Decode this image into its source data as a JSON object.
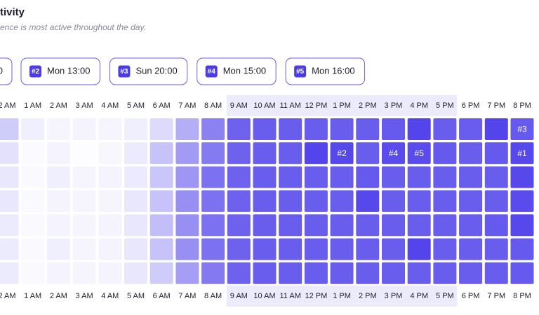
{
  "chart_data": {
    "type": "heatmap",
    "title": "tivity",
    "subtitle": "ence is most active throughout the day.",
    "pills": [
      {
        "text": "0"
      },
      {
        "badge": "#2",
        "text": "Mon 13:00"
      },
      {
        "badge": "#3",
        "text": "Sun 20:00"
      },
      {
        "badge": "#4",
        "text": "Mon 15:00"
      },
      {
        "badge": "#5",
        "text": "Mon 16:00"
      }
    ],
    "categories": [
      "2 AM",
      "1 AM",
      "2 AM",
      "3 AM",
      "4 AM",
      "5 AM",
      "6 AM",
      "7 AM",
      "8 AM",
      "9 AM",
      "10 AM",
      "11 AM",
      "12 PM",
      "1 PM",
      "2 PM",
      "3 PM",
      "4 PM",
      "5 PM",
      "6 PM",
      "7 PM",
      "8 PM"
    ],
    "highlight_range": [
      "9 AM",
      "5 PM"
    ],
    "zlim": [
      0,
      100
    ],
    "color_low": "#ffffff",
    "color_high": "#4434e9",
    "values": [
      [
        25,
        8,
        5,
        6,
        5,
        8,
        18,
        40,
        62,
        78,
        80,
        80,
        80,
        80,
        80,
        82,
        92,
        80,
        80,
        92,
        82
      ],
      [
        15,
        2,
        6,
        1,
        4,
        10,
        30,
        50,
        65,
        78,
        80,
        80,
        92,
        90,
        80,
        88,
        88,
        82,
        80,
        82,
        90
      ],
      [
        12,
        3,
        8,
        5,
        6,
        10,
        28,
        52,
        70,
        78,
        80,
        80,
        80,
        80,
        82,
        80,
        80,
        80,
        80,
        80,
        90
      ],
      [
        12,
        3,
        6,
        5,
        5,
        12,
        30,
        55,
        70,
        78,
        80,
        80,
        80,
        80,
        90,
        80,
        80,
        80,
        80,
        80,
        88
      ],
      [
        10,
        3,
        6,
        5,
        6,
        12,
        32,
        55,
        70,
        78,
        80,
        80,
        80,
        80,
        80,
        80,
        80,
        80,
        80,
        82,
        90
      ],
      [
        10,
        3,
        8,
        5,
        6,
        12,
        30,
        55,
        70,
        78,
        80,
        80,
        80,
        80,
        80,
        80,
        92,
        80,
        80,
        80,
        82
      ],
      [
        10,
        3,
        6,
        5,
        6,
        12,
        25,
        48,
        66,
        78,
        80,
        80,
        80,
        80,
        80,
        80,
        80,
        80,
        80,
        80,
        82
      ]
    ],
    "cell_labels": [
      [
        null,
        null,
        null,
        null,
        null,
        null,
        null,
        null,
        null,
        null,
        null,
        null,
        null,
        null,
        null,
        null,
        null,
        null,
        null,
        null,
        "#3"
      ],
      [
        null,
        null,
        null,
        null,
        null,
        null,
        null,
        null,
        null,
        null,
        null,
        null,
        null,
        "#2",
        null,
        "#4",
        "#5",
        null,
        null,
        null,
        "#1"
      ],
      [
        null,
        null,
        null,
        null,
        null,
        null,
        null,
        null,
        null,
        null,
        null,
        null,
        null,
        null,
        null,
        null,
        null,
        null,
        null,
        null,
        null
      ],
      [
        null,
        null,
        null,
        null,
        null,
        null,
        null,
        null,
        null,
        null,
        null,
        null,
        null,
        null,
        null,
        null,
        null,
        null,
        null,
        null,
        null
      ],
      [
        null,
        null,
        null,
        null,
        null,
        null,
        null,
        null,
        null,
        null,
        null,
        null,
        null,
        null,
        null,
        null,
        null,
        null,
        null,
        null,
        null
      ],
      [
        null,
        null,
        null,
        null,
        null,
        null,
        null,
        null,
        null,
        null,
        null,
        null,
        null,
        null,
        null,
        null,
        null,
        null,
        null,
        null,
        null
      ],
      [
        null,
        null,
        null,
        null,
        null,
        null,
        null,
        null,
        null,
        null,
        null,
        null,
        null,
        null,
        null,
        null,
        null,
        null,
        null,
        null,
        null
      ]
    ]
  }
}
